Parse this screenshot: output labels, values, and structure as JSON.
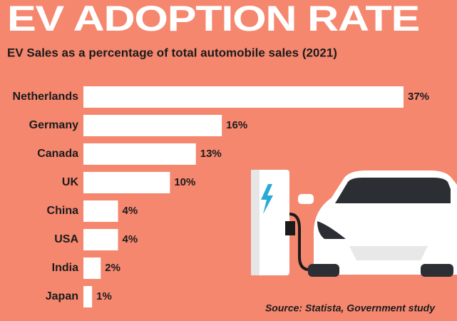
{
  "chart_data": {
    "type": "bar",
    "orientation": "horizontal",
    "title": "EV ADOPTION RATE",
    "subtitle": "EV Sales as a percentage of total automobile sales (2021)",
    "source": "Source: Statista, Government study",
    "categories": [
      "Netherlands",
      "Germany",
      "Canada",
      "UK",
      "China",
      "USA",
      "India",
      "Japan"
    ],
    "values": [
      37,
      16,
      13,
      10,
      4,
      4,
      2,
      1
    ],
    "value_labels": [
      "37%",
      "16%",
      "13%",
      "10%",
      "4%",
      "4%",
      "2%",
      "1%"
    ],
    "color": "#ffffff"
  }
}
